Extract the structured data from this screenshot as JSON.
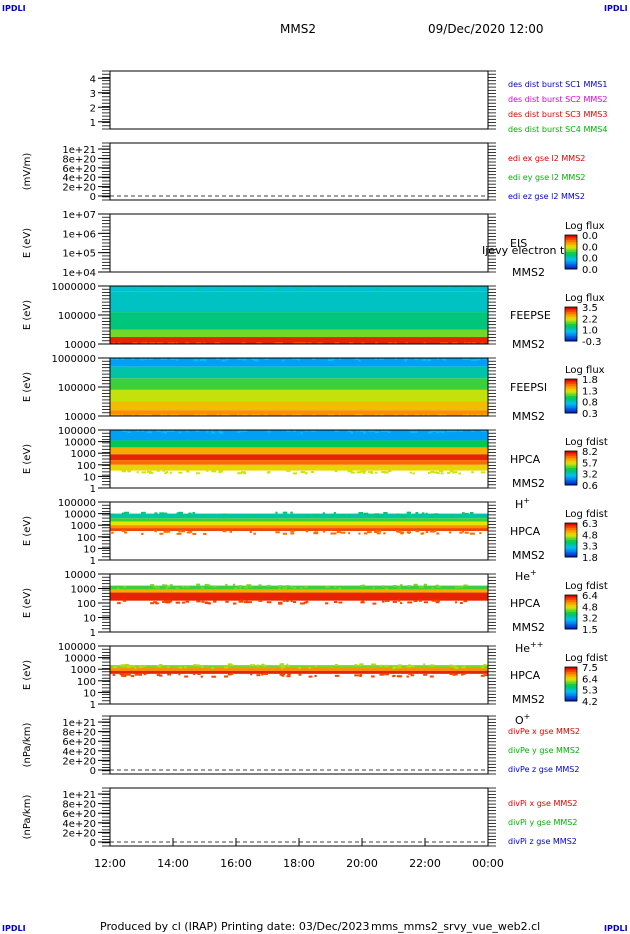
{
  "header": {
    "corner_tl": "IPDLI",
    "corner_tr": "IPDLI",
    "corner_bl": "IPDLI",
    "corner_br": "IPDLI",
    "spacecraft": "MMS2",
    "datetime": "09/Dec/2020 12:00"
  },
  "footer": {
    "produced_by": "Produced by cl (IRAP)",
    "printing_date": "Printing date: 03/Dec/2023",
    "script_name": "mms_mms2_srvy_vue_web2.cl"
  },
  "colors": {
    "blue": "#0000c8",
    "magenta": "#e000e0",
    "red": "#e00000",
    "green": "#00b000"
  },
  "chart_data": [
    {
      "type": "line",
      "ylim": [
        0.5,
        4.5
      ],
      "yticks": [
        "4",
        "3",
        "2",
        "1"
      ],
      "ylabel": "",
      "legend": [
        {
          "text": "des dist burst SC1 MMS1",
          "color": "#0000c8"
        },
        {
          "text": "des dist burst SC2 MMS2",
          "color": "#e000e0"
        },
        {
          "text": "des dist burst SC3 MMS3",
          "color": "#e00000"
        },
        {
          "text": "des dist burst SC4 MMS4",
          "color": "#00b000"
        }
      ],
      "series": []
    },
    {
      "type": "line",
      "ylabel": "(mV/m)",
      "yticks": [
        "1e+21",
        "8e+20",
        "6e+20",
        "4e+20",
        "2e+20",
        "0"
      ],
      "legend": [
        {
          "text": "edi ex gse l2 MMS2",
          "color": "#e00000"
        },
        {
          "text": "edi ey gse l2 MMS2",
          "color": "#00b000"
        },
        {
          "text": "edi ez gse l2 MMS2",
          "color": "#0000c8"
        }
      ],
      "zero_line": true,
      "series": []
    },
    {
      "type": "heatmap",
      "ylabel": "E (eV)",
      "yticks": [
        "1e+07",
        "1e+06",
        "1e+05",
        "1e+04"
      ],
      "instrument": "EIS",
      "spacecraft": "MMS2",
      "overlay_text": "Ijevy electron to",
      "colorbar": {
        "title": "Log flux",
        "ticks": [
          "0.0",
          "0.0",
          "0.0",
          "0.0"
        ]
      },
      "bands": []
    },
    {
      "type": "heatmap",
      "ylabel": "E (eV)",
      "yticks": [
        "1000000",
        "100000",
        "10000"
      ],
      "instrument": "FEEPSE",
      "spacecraft": "MMS2",
      "colorbar": {
        "title": "Log flux",
        "ticks": [
          "3.5",
          "2.2",
          "1.0",
          "-0.3"
        ]
      },
      "bands": [
        {
          "from": 0.0,
          "to": 0.1,
          "level": 0.3
        },
        {
          "from": 0.1,
          "to": 0.45,
          "level": 0.32
        },
        {
          "from": 0.45,
          "to": 0.75,
          "level": 0.4
        },
        {
          "from": 0.75,
          "to": 0.88,
          "level": 0.55
        },
        {
          "from": 0.88,
          "to": 1.0,
          "level": 0.95
        }
      ]
    },
    {
      "type": "heatmap",
      "ylabel": "E (eV)",
      "yticks": [
        "1000000",
        "100000",
        "10000"
      ],
      "instrument": "FEEPSI",
      "spacecraft": "MMS2",
      "colorbar": {
        "title": "Log flux",
        "ticks": [
          "1.8",
          "1.3",
          "0.8",
          "0.3"
        ]
      },
      "bands": [
        {
          "from": 0.0,
          "to": 0.15,
          "level": 0.2
        },
        {
          "from": 0.15,
          "to": 0.35,
          "level": 0.35
        },
        {
          "from": 0.35,
          "to": 0.55,
          "level": 0.5
        },
        {
          "from": 0.55,
          "to": 0.75,
          "level": 0.62
        },
        {
          "from": 0.75,
          "to": 0.9,
          "level": 0.72
        },
        {
          "from": 0.9,
          "to": 1.0,
          "level": 0.8
        }
      ]
    },
    {
      "type": "heatmap",
      "ylabel": "E (eV)",
      "yticks": [
        "100000",
        "10000",
        "1000",
        "100",
        "10",
        "1"
      ],
      "instrument": "HPCA",
      "spacecraft": "MMS2",
      "species": "H+",
      "colorbar": {
        "title": "Log fdist",
        "ticks": [
          "8.2",
          "5.7",
          "3.2",
          "0.6"
        ]
      },
      "bands": [
        {
          "from": 0.0,
          "to": 0.18,
          "level": 0.2
        },
        {
          "from": 0.18,
          "to": 0.3,
          "level": 0.45
        },
        {
          "from": 0.3,
          "to": 0.42,
          "level": 0.75
        },
        {
          "from": 0.42,
          "to": 0.52,
          "level": 0.95
        },
        {
          "from": 0.52,
          "to": 0.6,
          "level": 0.85
        },
        {
          "from": 0.6,
          "to": 0.7,
          "level": 0.68
        }
      ]
    },
    {
      "type": "heatmap",
      "ylabel": "E (eV)",
      "yticks": [
        "100000",
        "10000",
        "1000",
        "100",
        "10",
        "1"
      ],
      "instrument": "HPCA",
      "spacecraft": "MMS2",
      "species": "He+",
      "colorbar": {
        "title": "Log fdist",
        "ticks": [
          "6.3",
          "4.8",
          "3.3",
          "1.8"
        ]
      },
      "bands": [
        {
          "from": 0.2,
          "to": 0.28,
          "level": 0.35
        },
        {
          "from": 0.28,
          "to": 0.34,
          "level": 0.5
        },
        {
          "from": 0.34,
          "to": 0.4,
          "level": 0.65
        },
        {
          "from": 0.4,
          "to": 0.45,
          "level": 0.8
        },
        {
          "from": 0.45,
          "to": 0.5,
          "level": 0.9
        }
      ]
    },
    {
      "type": "heatmap",
      "ylabel": "E (eV)",
      "yticks": [
        "10000",
        "1000",
        "100",
        "10",
        "1"
      ],
      "instrument": "HPCA",
      "spacecraft": "MMS2",
      "species": "He++",
      "colorbar": {
        "title": "Log fdist",
        "ticks": [
          "6.4",
          "4.8",
          "3.2",
          "1.5"
        ]
      },
      "bands": [
        {
          "from": 0.2,
          "to": 0.27,
          "level": 0.5
        },
        {
          "from": 0.27,
          "to": 0.32,
          "level": 0.75
        },
        {
          "from": 0.32,
          "to": 0.46,
          "level": 0.95
        }
      ]
    },
    {
      "type": "heatmap",
      "ylabel": "E (eV)",
      "yticks": [
        "100000",
        "10000",
        "1000",
        "100",
        "10",
        "1"
      ],
      "instrument": "HPCA",
      "spacecraft": "MMS2",
      "species": "O+",
      "colorbar": {
        "title": "Log fdist",
        "ticks": [
          "7.5",
          "6.4",
          "5.3",
          "4.2"
        ]
      },
      "bands": [
        {
          "from": 0.33,
          "to": 0.38,
          "level": 0.55
        },
        {
          "from": 0.38,
          "to": 0.43,
          "level": 0.8
        },
        {
          "from": 0.43,
          "to": 0.48,
          "level": 0.95
        }
      ]
    },
    {
      "type": "line",
      "ylabel": "(nPa/km)",
      "yticks": [
        "1e+21",
        "8e+20",
        "6e+20",
        "4e+20",
        "2e+20",
        "0"
      ],
      "legend": [
        {
          "text": "divPe x gse MMS2",
          "color": "#e00000"
        },
        {
          "text": "divPe y gse MMS2",
          "color": "#00b000"
        },
        {
          "text": "divPe z gse MMS2",
          "color": "#0000c8"
        }
      ],
      "zero_line": true,
      "series": []
    },
    {
      "type": "line",
      "ylabel": "(nPa/km)",
      "yticks": [
        "1e+21",
        "8e+20",
        "6e+20",
        "4e+20",
        "2e+20",
        "0"
      ],
      "legend": [
        {
          "text": "divPi x gse MMS2",
          "color": "#e00000"
        },
        {
          "text": "divPi y gse MMS2",
          "color": "#00b000"
        },
        {
          "text": "divPi z gse MMS2",
          "color": "#0000c8"
        }
      ],
      "zero_line": true,
      "series": [],
      "xticks": [
        "12:00",
        "14:00",
        "16:00",
        "18:00",
        "20:00",
        "22:00",
        "00:00"
      ]
    }
  ]
}
